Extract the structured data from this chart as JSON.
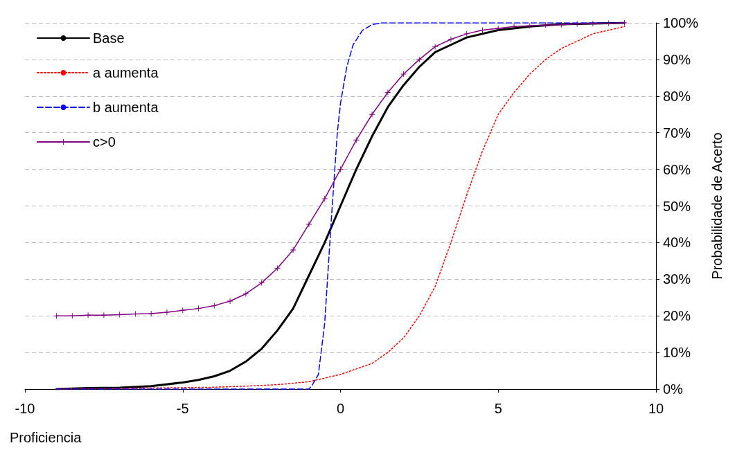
{
  "chart_data": {
    "type": "line",
    "xlabel": "Proficiencia",
    "ylabel": "Probabilidade de Acerto",
    "xlim": [
      -10,
      10
    ],
    "xticks": [
      -10,
      -5,
      0,
      5,
      10
    ],
    "ylim": [
      0,
      100
    ],
    "yticks": [
      {
        "value": 0,
        "label": "0%"
      },
      {
        "value": 10,
        "label": "10%"
      },
      {
        "value": 20,
        "label": "20%"
      },
      {
        "value": 30,
        "label": "30%"
      },
      {
        "value": 40,
        "label": "40%"
      },
      {
        "value": 50,
        "label": "50%"
      },
      {
        "value": 60,
        "label": "60%"
      },
      {
        "value": 70,
        "label": "70%"
      },
      {
        "value": 80,
        "label": "80%"
      },
      {
        "value": 90,
        "label": "90%"
      },
      {
        "value": 100,
        "label": "100%"
      }
    ],
    "grid": "y",
    "legend": "top left",
    "series": [
      {
        "name": "Base",
        "color": "#000000",
        "line_style": "solid",
        "marker": "none",
        "x": [
          -9,
          -8,
          -7,
          -6,
          -5,
          -4.5,
          -4,
          -3.5,
          -3,
          -2.5,
          -2,
          -1.5,
          -1,
          -0.5,
          0,
          0.5,
          1,
          1.5,
          2,
          2.5,
          3,
          3.5,
          4,
          5,
          6,
          7,
          8,
          9
        ],
        "values": [
          0,
          0.3,
          0.4,
          0.8,
          1.8,
          2.5,
          3.5,
          5,
          7.5,
          11,
          16,
          22,
          31,
          40,
          50,
          60,
          69,
          77,
          83,
          88,
          92,
          94,
          96,
          98,
          99,
          99.6,
          99.8,
          100
        ]
      },
      {
        "name": "a aumenta",
        "color": "#ff0000",
        "line_style": "dotted",
        "marker": "none",
        "x": [
          -9,
          -4,
          -3,
          -2,
          -1,
          0,
          0.5,
          1,
          1.5,
          2,
          2.5,
          3,
          3.5,
          4,
          4.5,
          5,
          5.5,
          6,
          6.5,
          7,
          8,
          9
        ],
        "values": [
          0,
          0.5,
          0.8,
          1.2,
          2,
          4,
          5.5,
          7,
          10,
          14,
          20,
          28,
          40,
          53,
          65,
          75,
          81,
          86,
          90,
          93,
          97,
          99
        ]
      },
      {
        "name": "b aumenta",
        "color": "#0000ff",
        "line_style": "dashed",
        "marker": "none",
        "x": [
          -9,
          -1,
          -0.9,
          -0.7,
          -0.5,
          -0.3,
          -0.1,
          0,
          0.2,
          0.4,
          0.7,
          1,
          1.3,
          9
        ],
        "values": [
          0,
          0,
          1,
          4,
          18,
          45,
          70,
          78,
          88,
          94,
          98,
          99.5,
          100,
          100
        ]
      },
      {
        "name": "c>0",
        "color": "#800080",
        "line_style": "solid",
        "marker": "cross",
        "x": [
          -9,
          -8.5,
          -8,
          -7.5,
          -7,
          -6.5,
          -6,
          -5.5,
          -5,
          -4.5,
          -4,
          -3.5,
          -3,
          -2.5,
          -2,
          -1.5,
          -1,
          -0.5,
          0,
          0.5,
          1,
          1.5,
          2,
          2.5,
          3,
          3.5,
          4,
          4.5,
          5,
          5.5,
          6,
          6.5,
          7,
          7.5,
          8,
          8.5,
          9
        ],
        "values": [
          20,
          20,
          20.2,
          20.2,
          20.3,
          20.5,
          20.6,
          21,
          21.5,
          22,
          22.8,
          24,
          26,
          29,
          33,
          38,
          45,
          52,
          60,
          68,
          75,
          81,
          86,
          90,
          93.5,
          95.5,
          97,
          98,
          98.5,
          99,
          99.2,
          99.4,
          99.5,
          99.7,
          99.8,
          99.9,
          100
        ]
      }
    ]
  }
}
